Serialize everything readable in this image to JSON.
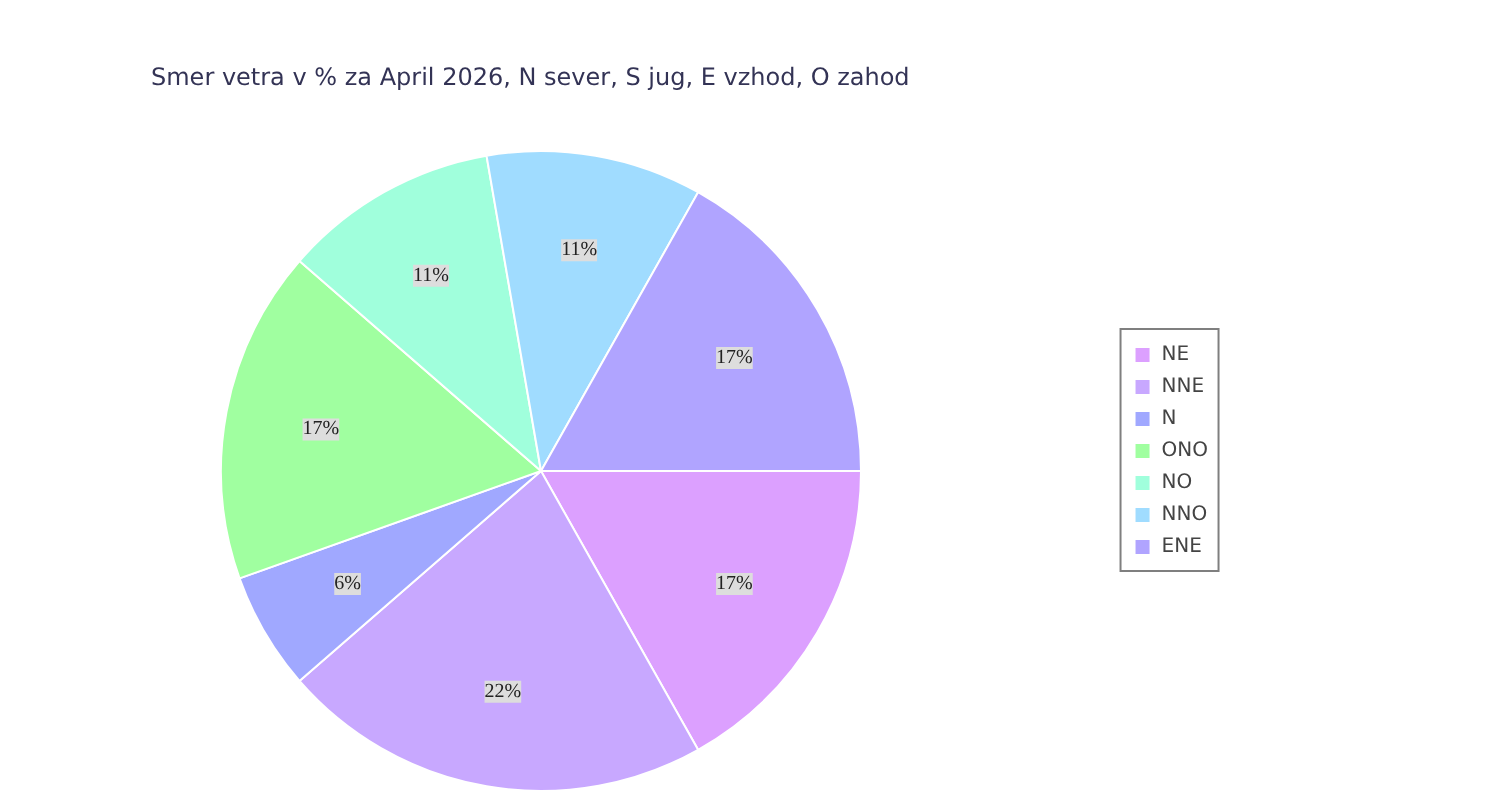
{
  "chart_data": {
    "type": "pie",
    "title": "Smer vetra v % za April 2026, N sever, S jug, E vzhod, O zahod",
    "categories": [
      "NE",
      "NNE",
      "N",
      "ONO",
      "NO",
      "NNO",
      "ENE"
    ],
    "values": [
      17,
      22,
      6,
      17,
      11,
      11,
      17
    ],
    "value_labels": [
      "17%",
      "22%",
      "6%",
      "17%",
      "11%",
      "11%",
      "17%"
    ],
    "colors": [
      "#dca0ff",
      "#c8a8ff",
      "#a0a8ff",
      "#a0ffa0",
      "#a0ffdc",
      "#a0dcff",
      "#b0a4ff"
    ],
    "legend": "right"
  }
}
